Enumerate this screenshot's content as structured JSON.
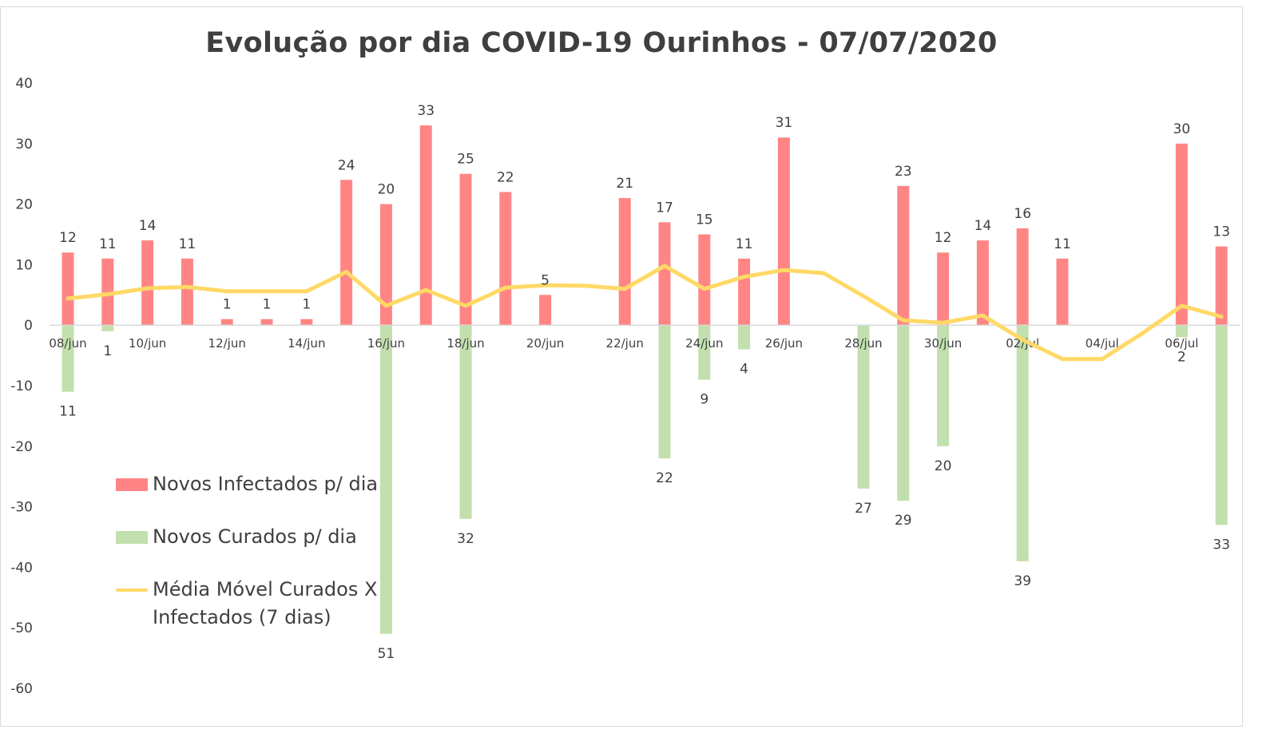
{
  "colors": {
    "infected": "#ff8585",
    "cured": "#c2dfae",
    "average": "#ffd966",
    "axis": "#d9d9d9",
    "text": "#404040"
  },
  "chart_data": {
    "type": "bar",
    "title": "Evolução por dia COVID-19 Ourinhos - 07/07/2020",
    "xlabel": "",
    "ylabel": "",
    "ylim": [
      -60,
      40
    ],
    "yticks": [
      40,
      30,
      20,
      10,
      0,
      -10,
      -20,
      -30,
      -40,
      -50,
      -60
    ],
    "categories": [
      "08/jun",
      "09/jun",
      "10/jun",
      "11/jun",
      "12/jun",
      "13/jun",
      "14/jun",
      "15/jun",
      "16/jun",
      "17/jun",
      "18/jun",
      "19/jun",
      "20/jun",
      "21/jun",
      "22/jun",
      "23/jun",
      "24/jun",
      "25/jun",
      "26/jun",
      "27/jun",
      "28/jun",
      "29/jun",
      "30/jun",
      "01/jul",
      "02/jul",
      "03/jul",
      "04/jul",
      "05/jul",
      "06/jul",
      "07/jul"
    ],
    "visible_tick_labels": [
      "08/jun",
      "10/jun",
      "12/jun",
      "14/jun",
      "16/jun",
      "18/jun",
      "20/jun",
      "22/jun",
      "24/jun",
      "26/jun",
      "28/jun",
      "30/jun",
      "02/jul",
      "04/jul",
      "06/jul"
    ],
    "series": [
      {
        "name": "Novos Infectados p/ dia",
        "kind": "bar",
        "values": [
          12,
          11,
          14,
          11,
          1,
          1,
          1,
          24,
          20,
          33,
          25,
          22,
          5,
          0,
          21,
          17,
          15,
          11,
          31,
          0,
          0,
          23,
          12,
          14,
          16,
          11,
          0,
          0,
          30,
          13
        ]
      },
      {
        "name": "Novos Curados p/ dia",
        "kind": "bar",
        "values": [
          -11,
          -1,
          0,
          0,
          0,
          0,
          0,
          0,
          -51,
          0,
          -32,
          0,
          0,
          0,
          0,
          -22,
          -9,
          -4,
          0,
          0,
          -27,
          -29,
          -20,
          0,
          -39,
          0,
          0,
          0,
          -2,
          -33
        ]
      },
      {
        "name": "Média Móvel Curados X Infectados (7 dias)",
        "kind": "line",
        "values": [
          4.4,
          5.1,
          6.1,
          6.3,
          5.6,
          5.6,
          5.6,
          8.8,
          3.2,
          5.8,
          3.2,
          6.2,
          6.6,
          6.5,
          6.0,
          9.8,
          6.0,
          8.0,
          9.1,
          8.6,
          4.8,
          0.8,
          0.4,
          1.6,
          -2.4,
          -5.6,
          -5.6,
          -1.4,
          3.2,
          1.4
        ]
      }
    ],
    "data_labels": {
      "infected": [
        "12",
        "11",
        "14",
        "11",
        "1",
        "1",
        "1",
        "24",
        "20",
        "33",
        "25",
        "22",
        "5",
        "",
        "21",
        "17",
        "15",
        "11",
        "31",
        "",
        "",
        "23",
        "12",
        "14",
        "16",
        "11",
        "",
        "",
        "30",
        "13"
      ],
      "cured": [
        "11",
        "1",
        "",
        "",
        "",
        "",
        "",
        "",
        "51",
        "",
        "32",
        "",
        "",
        "",
        "",
        "22",
        "9",
        "4",
        "",
        "",
        "27",
        "29",
        "20",
        "",
        "39",
        "",
        "",
        "",
        "2",
        "33"
      ]
    },
    "legend": {
      "position": "bottom-left",
      "entries": [
        "Novos Infectados p/ dia",
        "Novos Curados p/ dia",
        "Média Móvel Curados X Infectados (7 dias)"
      ],
      "average_line_1": "Média Móvel Curados X",
      "average_line_2": "Infectados (7 dias)"
    }
  }
}
